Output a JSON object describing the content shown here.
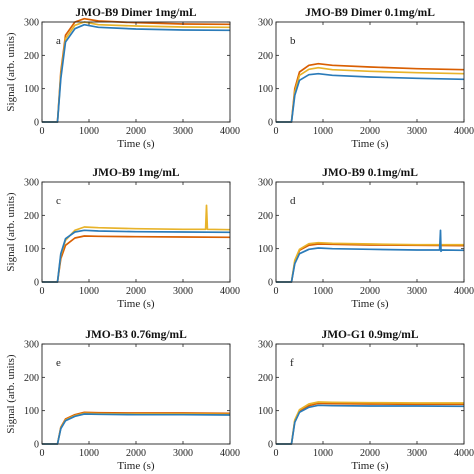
{
  "chart_data": [
    {
      "type": "line",
      "label": "a",
      "title": "JMO-B9 Dimer 1mg/mL",
      "xlabel": "Time (s)",
      "ylabel": "Signal (arb. units)",
      "xlim": [
        0,
        4000
      ],
      "ylim": [
        0,
        300
      ],
      "xticks": [
        "0",
        "1000",
        "2000",
        "3000",
        "4000"
      ],
      "yticks": [
        "0",
        "100",
        "200",
        "300"
      ],
      "series": [
        {
          "color": "#d95f02",
          "values": [
            [
              0,
              0
            ],
            [
              330,
              0
            ],
            [
              400,
              150
            ],
            [
              500,
              260
            ],
            [
              700,
              300
            ],
            [
              900,
              310
            ],
            [
              1200,
              303
            ],
            [
              2000,
              298
            ],
            [
              3000,
              294
            ],
            [
              4000,
              293
            ]
          ]
        },
        {
          "color": "#e8b32a",
          "values": [
            [
              0,
              0
            ],
            [
              330,
              0
            ],
            [
              400,
              140
            ],
            [
              500,
              250
            ],
            [
              700,
              290
            ],
            [
              900,
              300
            ],
            [
              1200,
              292
            ],
            [
              2000,
              288
            ],
            [
              3000,
              285
            ],
            [
              4000,
              284
            ]
          ]
        },
        {
          "color": "#2b7bb9",
          "values": [
            [
              0,
              0
            ],
            [
              330,
              0
            ],
            [
              400,
              130
            ],
            [
              500,
              240
            ],
            [
              700,
              280
            ],
            [
              900,
              292
            ],
            [
              1200,
              284
            ],
            [
              2000,
              279
            ],
            [
              3000,
              276
            ],
            [
              4000,
              275
            ]
          ]
        }
      ]
    },
    {
      "type": "line",
      "label": "b",
      "title": "JMO-B9 Dimer 0.1mg/mL",
      "xlabel": "Time (s)",
      "ylabel": "",
      "xlim": [
        0,
        4000
      ],
      "ylim": [
        0,
        300
      ],
      "xticks": [
        "0",
        "1000",
        "2000",
        "3000",
        "4000"
      ],
      "yticks": [
        "0",
        "100",
        "200",
        "300"
      ],
      "series": [
        {
          "color": "#d95f02",
          "values": [
            [
              0,
              0
            ],
            [
              330,
              0
            ],
            [
              400,
              100
            ],
            [
              500,
              150
            ],
            [
              700,
              170
            ],
            [
              900,
              175
            ],
            [
              1200,
              170
            ],
            [
              2000,
              165
            ],
            [
              3000,
              160
            ],
            [
              4000,
              157
            ]
          ]
        },
        {
          "color": "#e8b32a",
          "values": [
            [
              0,
              0
            ],
            [
              330,
              0
            ],
            [
              400,
              90
            ],
            [
              500,
              140
            ],
            [
              700,
              158
            ],
            [
              900,
              163
            ],
            [
              1200,
              157
            ],
            [
              2000,
              152
            ],
            [
              3000,
              148
            ],
            [
              4000,
              145
            ]
          ]
        },
        {
          "color": "#2b7bb9",
          "values": [
            [
              0,
              0
            ],
            [
              330,
              0
            ],
            [
              400,
              80
            ],
            [
              500,
              125
            ],
            [
              700,
              142
            ],
            [
              900,
              145
            ],
            [
              1200,
              140
            ],
            [
              2000,
              135
            ],
            [
              3000,
              131
            ],
            [
              4000,
              128
            ]
          ]
        }
      ]
    },
    {
      "type": "line",
      "label": "c",
      "title": "JMO-B9 1mg/mL",
      "xlabel": "Time (s)",
      "ylabel": "Signal (arb. units)",
      "xlim": [
        0,
        4000
      ],
      "ylim": [
        0,
        300
      ],
      "xticks": [
        "0",
        "1000",
        "2000",
        "3000",
        "4000"
      ],
      "yticks": [
        "0",
        "100",
        "200",
        "300"
      ],
      "series": [
        {
          "color": "#d95f02",
          "values": [
            [
              0,
              0
            ],
            [
              330,
              0
            ],
            [
              400,
              70
            ],
            [
              500,
              110
            ],
            [
              700,
              132
            ],
            [
              900,
              138
            ],
            [
              1200,
              137
            ],
            [
              2000,
              136
            ],
            [
              3000,
              135
            ],
            [
              4000,
              134
            ]
          ]
        },
        {
          "color": "#e8b32a",
          "values": [
            [
              0,
              0
            ],
            [
              330,
              0
            ],
            [
              400,
              80
            ],
            [
              500,
              125
            ],
            [
              700,
              155
            ],
            [
              900,
              165
            ],
            [
              1200,
              163
            ],
            [
              2000,
              160
            ],
            [
              3000,
              158
            ],
            [
              3480,
              158
            ],
            [
              3500,
              230
            ],
            [
              3520,
              158
            ],
            [
              4000,
              157
            ]
          ]
        },
        {
          "color": "#2b7bb9",
          "values": [
            [
              0,
              0
            ],
            [
              330,
              0
            ],
            [
              400,
              85
            ],
            [
              500,
              130
            ],
            [
              700,
              150
            ],
            [
              900,
              155
            ],
            [
              1200,
              153
            ],
            [
              2000,
              151
            ],
            [
              3000,
              150
            ],
            [
              4000,
              149
            ]
          ]
        }
      ]
    },
    {
      "type": "line",
      "label": "d",
      "title": "JMO-B9 0.1mg/mL",
      "xlabel": "Time (s)",
      "ylabel": "",
      "xlim": [
        0,
        4000
      ],
      "ylim": [
        0,
        300
      ],
      "xticks": [
        "0",
        "1000",
        "2000",
        "3000",
        "4000"
      ],
      "yticks": [
        "0",
        "100",
        "200",
        "300"
      ],
      "series": [
        {
          "color": "#d95f02",
          "values": [
            [
              0,
              0
            ],
            [
              330,
              0
            ],
            [
              400,
              60
            ],
            [
              500,
              95
            ],
            [
              700,
              110
            ],
            [
              900,
              114
            ],
            [
              1200,
              113
            ],
            [
              2000,
              111
            ],
            [
              3000,
              110
            ],
            [
              4000,
              109
            ]
          ]
        },
        {
          "color": "#e8b32a",
          "values": [
            [
              0,
              0
            ],
            [
              330,
              0
            ],
            [
              400,
              65
            ],
            [
              500,
              98
            ],
            [
              700,
              115
            ],
            [
              900,
              118
            ],
            [
              1200,
              116
            ],
            [
              2000,
              114
            ],
            [
              3000,
              112
            ],
            [
              4000,
              112
            ]
          ]
        },
        {
          "color": "#2b7bb9",
          "values": [
            [
              0,
              0
            ],
            [
              330,
              0
            ],
            [
              400,
              55
            ],
            [
              500,
              85
            ],
            [
              700,
              98
            ],
            [
              900,
              102
            ],
            [
              1200,
              100
            ],
            [
              2000,
              98
            ],
            [
              3000,
              96
            ],
            [
              3480,
              96
            ],
            [
              3500,
              155
            ],
            [
              3510,
              92
            ],
            [
              3530,
              96
            ],
            [
              4000,
              95
            ]
          ]
        }
      ]
    },
    {
      "type": "line",
      "label": "e",
      "title": "JMO-B3 0.76mg/mL",
      "xlabel": "Time (s)",
      "ylabel": "Signal (arb. units)",
      "xlim": [
        0,
        4000
      ],
      "ylim": [
        0,
        300
      ],
      "xticks": [
        "0",
        "1000",
        "2000",
        "3000",
        "4000"
      ],
      "yticks": [
        "0",
        "100",
        "200",
        "300"
      ],
      "series": [
        {
          "color": "#d95f02",
          "values": [
            [
              0,
              0
            ],
            [
              330,
              0
            ],
            [
              400,
              50
            ],
            [
              500,
              75
            ],
            [
              700,
              88
            ],
            [
              900,
              95
            ],
            [
              1200,
              94
            ],
            [
              2000,
              93
            ],
            [
              3000,
              93
            ],
            [
              4000,
              92
            ]
          ]
        },
        {
          "color": "#e8b32a",
          "values": [
            [
              0,
              0
            ],
            [
              330,
              0
            ],
            [
              400,
              48
            ],
            [
              500,
              72
            ],
            [
              700,
              85
            ],
            [
              900,
              92
            ],
            [
              1200,
              91
            ],
            [
              2000,
              90
            ],
            [
              3000,
              90
            ],
            [
              4000,
              89
            ]
          ]
        },
        {
          "color": "#2b7bb9",
          "values": [
            [
              0,
              0
            ],
            [
              330,
              0
            ],
            [
              400,
              46
            ],
            [
              500,
              70
            ],
            [
              700,
              83
            ],
            [
              900,
              90
            ],
            [
              1200,
              89
            ],
            [
              2000,
              88
            ],
            [
              3000,
              88
            ],
            [
              4000,
              87
            ]
          ]
        }
      ]
    },
    {
      "type": "line",
      "label": "f",
      "title": "JMO-G1 0.9mg/mL",
      "xlabel": "Time (s)",
      "ylabel": "",
      "xlim": [
        0,
        4000
      ],
      "ylim": [
        0,
        300
      ],
      "xticks": [
        "0",
        "1000",
        "2000",
        "3000",
        "4000"
      ],
      "yticks": [
        "0",
        "100",
        "200",
        "300"
      ],
      "series": [
        {
          "color": "#d95f02",
          "values": [
            [
              0,
              0
            ],
            [
              330,
              0
            ],
            [
              400,
              70
            ],
            [
              500,
              100
            ],
            [
              700,
              115
            ],
            [
              900,
              122
            ],
            [
              1200,
              121
            ],
            [
              2000,
              120
            ],
            [
              3000,
              119
            ],
            [
              4000,
              119
            ]
          ]
        },
        {
          "color": "#e8b32a",
          "values": [
            [
              0,
              0
            ],
            [
              330,
              0
            ],
            [
              400,
              72
            ],
            [
              500,
              103
            ],
            [
              700,
              120
            ],
            [
              900,
              126
            ],
            [
              1200,
              125
            ],
            [
              2000,
              124
            ],
            [
              3000,
              123
            ],
            [
              4000,
              123
            ]
          ]
        },
        {
          "color": "#2b7bb9",
          "values": [
            [
              0,
              0
            ],
            [
              330,
              0
            ],
            [
              400,
              65
            ],
            [
              500,
              95
            ],
            [
              700,
              110
            ],
            [
              900,
              116
            ],
            [
              1200,
              115
            ],
            [
              2000,
              114
            ],
            [
              3000,
              114
            ],
            [
              4000,
              113
            ]
          ]
        }
      ]
    }
  ]
}
